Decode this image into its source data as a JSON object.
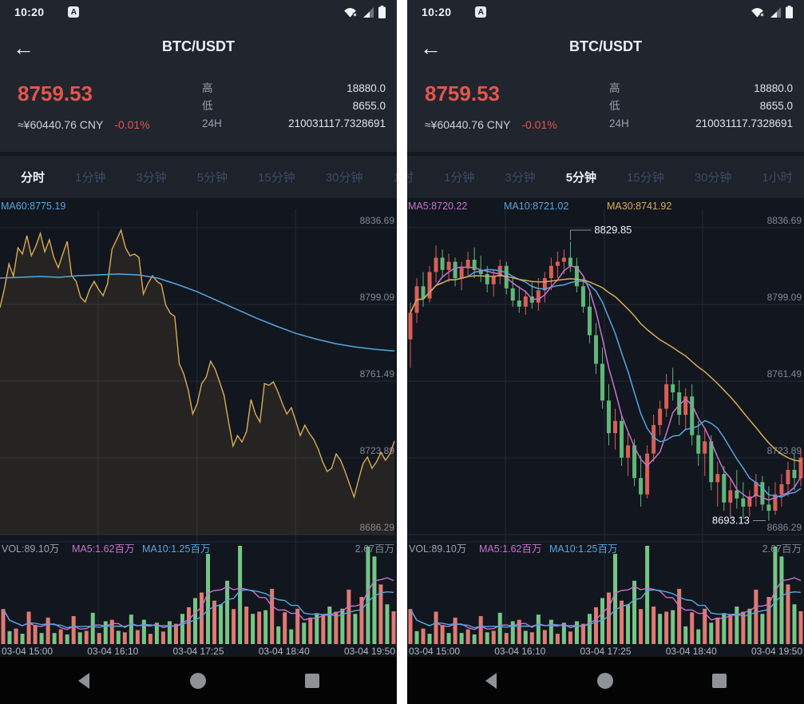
{
  "colors": {
    "up_red": "#d95f57",
    "down_green": "#5fb878",
    "vol_red": "#e07a72",
    "vol_green": "#74c685",
    "ma5_magenta": "#c873cf",
    "ma10_blue": "#55a7de",
    "ma30_yellow": "#d9ab55",
    "price_red": "#e4564c",
    "axis_label_gray": "#7f8795",
    "grid_line": "#242a35",
    "annotation_text": "#f2f4f7",
    "annotation_line": "#8a9097"
  },
  "status_bar": {
    "time": "10:20",
    "app_badge": "A"
  },
  "header": {
    "title": "BTC/USDT"
  },
  "ticker": {
    "price": "8759.53",
    "fiat": "≈¥60440.76 CNY",
    "change": "-0.01%",
    "rows": [
      {
        "label": "高",
        "value": "18880.0"
      },
      {
        "label": "低",
        "value": "8655.0"
      },
      {
        "label": "24H",
        "value": "210031117.7328691"
      }
    ]
  },
  "tabs": {
    "items": [
      "分时",
      "1分钟",
      "3分钟",
      "5分钟",
      "15分钟",
      "30分钟",
      "1小时"
    ],
    "names": [
      "tab-time-share",
      "tab-1min",
      "tab-3min",
      "tab-5min",
      "tab-15min",
      "tab-30min",
      "tab-1hour"
    ],
    "left_active": 0,
    "right_active": 3
  },
  "volume_pane": {
    "labels": [
      {
        "text": "VOL:89.10万",
        "color": "#9aa2ae"
      },
      {
        "text": "MA5:1.62百万",
        "color": "#c873cf"
      },
      {
        "text": "MA10:1.25百万",
        "color": "#55a7de"
      }
    ],
    "max_label": "2.67百万",
    "max_value": 267,
    "bars": [
      [
        95,
        "r"
      ],
      [
        35,
        "g"
      ],
      [
        42,
        "r"
      ],
      [
        28,
        "g"
      ],
      [
        88,
        "r"
      ],
      [
        52,
        "r"
      ],
      [
        30,
        "g"
      ],
      [
        72,
        "r"
      ],
      [
        30,
        "g"
      ],
      [
        40,
        "r"
      ],
      [
        26,
        "g"
      ],
      [
        76,
        "r"
      ],
      [
        32,
        "g"
      ],
      [
        36,
        "r"
      ],
      [
        85,
        "g"
      ],
      [
        30,
        "r"
      ],
      [
        62,
        "g"
      ],
      [
        66,
        "r"
      ],
      [
        36,
        "g"
      ],
      [
        32,
        "r"
      ],
      [
        80,
        "g"
      ],
      [
        38,
        "r"
      ],
      [
        66,
        "g"
      ],
      [
        28,
        "r"
      ],
      [
        58,
        "g"
      ],
      [
        34,
        "r"
      ],
      [
        62,
        "g"
      ],
      [
        55,
        "r"
      ],
      [
        82,
        "g"
      ],
      [
        100,
        "r"
      ],
      [
        125,
        "g"
      ],
      [
        140,
        "r"
      ],
      [
        245,
        "g"
      ],
      [
        118,
        "r"
      ],
      [
        108,
        "g"
      ],
      [
        172,
        "g"
      ],
      [
        95,
        "r"
      ],
      [
        267,
        "g"
      ],
      [
        102,
        "r"
      ],
      [
        82,
        "g"
      ],
      [
        88,
        "r"
      ],
      [
        92,
        "g"
      ],
      [
        150,
        "r"
      ],
      [
        48,
        "g"
      ],
      [
        86,
        "r"
      ],
      [
        40,
        "g"
      ],
      [
        96,
        "r"
      ],
      [
        58,
        "g"
      ],
      [
        72,
        "r"
      ],
      [
        84,
        "g"
      ],
      [
        80,
        "r"
      ],
      [
        102,
        "g"
      ],
      [
        88,
        "r"
      ],
      [
        96,
        "g"
      ],
      [
        148,
        "r"
      ],
      [
        82,
        "g"
      ],
      [
        128,
        "r"
      ],
      [
        265,
        "g"
      ],
      [
        238,
        "g"
      ],
      [
        162,
        "r"
      ],
      [
        108,
        "g"
      ],
      [
        89,
        "r"
      ]
    ]
  },
  "chart_data": [
    {
      "type": "line",
      "title": "分时 (time-share line chart)",
      "ma_labels": [
        {
          "text": "MA60:8775.19",
          "color": "#55a7de",
          "x": 1
        }
      ],
      "y_ticks": [
        "8836.69",
        "8799.09",
        "8761.49",
        "8723.89",
        "8686.29"
      ],
      "x_ticks": [
        "03-04 15:00",
        "03-04 16:10",
        "03-04 17:25",
        "03-04 18:40",
        "03-04 19:50"
      ],
      "ylim": [
        8686.29,
        8836.69
      ],
      "price": [
        8797.5,
        8807,
        8819,
        8813,
        8826.9,
        8823.8,
        8832.8,
        8823,
        8827.7,
        8833.9,
        8824.9,
        8830.8,
        8822.2,
        8817.1,
        8823.8,
        8830,
        8813.2,
        8810.4,
        8802.6,
        8800.3,
        8806.5,
        8810.4,
        8806.5,
        8803.4,
        8809.3,
        8826.1,
        8830.8,
        8835.5,
        8826.9,
        8823,
        8823.8,
        8822.2,
        8804.2,
        8809.3,
        8813.2,
        8810.4,
        8808.9,
        8798.7,
        8794.8,
        8793.2,
        8770.1,
        8765,
        8757.2,
        8745.4,
        8750.5,
        8760.3,
        8763.4,
        8771.3,
        8767.4,
        8761.1,
        8754.4,
        8741.5,
        8729.7,
        8734.8,
        8731.7,
        8736.8,
        8752.5,
        8745.4,
        8741.5,
        8760.3,
        8759.5,
        8761.1,
        8756.4,
        8750.5,
        8745.4,
        8748.5,
        8741.9,
        8734.8,
        8739.9,
        8736,
        8732.9,
        8728.2,
        8721.9,
        8717.2,
        8718.8,
        8725.8,
        8722.7,
        8717.2,
        8710.9,
        8704.7,
        8713.3,
        8721.1,
        8724.3,
        8718.8,
        8721.9,
        8726.6,
        8722.7,
        8725.8,
        8732.1
      ],
      "ma60": [
        8812.0,
        8812.4,
        8812.8,
        8812.4,
        8813.2,
        8813.6,
        8814.0,
        8813.6,
        8812.0,
        8808.9,
        8805.3,
        8801.0,
        8796.7,
        8792.4,
        8788.5,
        8784.9,
        8782.2,
        8779.9,
        8778.3,
        8777.1,
        8776.3
      ]
    },
    {
      "type": "candles",
      "title": "5分钟 K线 (5-min candlestick chart)",
      "ma_labels": [
        {
          "text": "MA5:8720.22",
          "color": "#c873cf",
          "x": 1
        },
        {
          "text": "MA10:8721.02",
          "color": "#55a7de",
          "x": 121
        },
        {
          "text": "MA30:8741.92",
          "color": "#d9ab55",
          "x": 250
        }
      ],
      "y_ticks": [
        "8836.69",
        "8799.09",
        "8761.49",
        "8723.89",
        "8686.29"
      ],
      "x_ticks": [
        "03-04 15:00",
        "03-04 16:10",
        "03-04 17:25",
        "03-04 18:40",
        "03-04 19:50"
      ],
      "ylim": [
        8686.29,
        8836.69
      ],
      "annotations": {
        "high": "8829.85",
        "low": "8693.13"
      },
      "candles": [
        [
          8782,
          8800,
          8768,
          8795
        ],
        [
          8795,
          8812,
          8790,
          8808
        ],
        [
          8808,
          8815,
          8798,
          8802
        ],
        [
          8802,
          8818,
          8800,
          8815
        ],
        [
          8815,
          8828,
          8810,
          8822
        ],
        [
          8822,
          8826,
          8812,
          8816
        ],
        [
          8816,
          8824,
          8810,
          8820
        ],
        [
          8820,
          8822,
          8808,
          8812
        ],
        [
          8812,
          8820,
          8806,
          8817
        ],
        [
          8817,
          8825,
          8813,
          8821
        ],
        [
          8821,
          8827,
          8812,
          8816
        ],
        [
          8816,
          8823,
          8810,
          8814
        ],
        [
          8814,
          8818,
          8805,
          8809
        ],
        [
          8809,
          8816,
          8803,
          8813
        ],
        [
          8813,
          8821,
          8809,
          8818
        ],
        [
          8818,
          8820,
          8804,
          8807
        ],
        [
          8807,
          8812,
          8798,
          8801
        ],
        [
          8801,
          8808,
          8795,
          8798
        ],
        [
          8798,
          8806,
          8794,
          8803
        ],
        [
          8803,
          8810,
          8797,
          8800
        ],
        [
          8800,
          8812,
          8796,
          8806
        ],
        [
          8806,
          8815,
          8800,
          8812
        ],
        [
          8812,
          8822,
          8806,
          8818
        ],
        [
          8818,
          8825,
          8812,
          8820
        ],
        [
          8820,
          8826,
          8814,
          8822
        ],
        [
          8822,
          8829.85,
          8815,
          8818
        ],
        [
          8818,
          8822,
          8805,
          8808
        ],
        [
          8808,
          8812,
          8795,
          8798
        ],
        [
          8798,
          8805,
          8780,
          8784
        ],
        [
          8784,
          8790,
          8765,
          8770
        ],
        [
          8770,
          8778,
          8748,
          8752
        ],
        [
          8752,
          8760,
          8730,
          8736
        ],
        [
          8736,
          8748,
          8728,
          8742
        ],
        [
          8742,
          8745,
          8720,
          8724
        ],
        [
          8724,
          8736,
          8715,
          8730
        ],
        [
          8730,
          8733,
          8710,
          8714
        ],
        [
          8714,
          8725,
          8700,
          8706
        ],
        [
          8706,
          8730,
          8704,
          8726
        ],
        [
          8726,
          8745,
          8722,
          8740
        ],
        [
          8740,
          8752,
          8735,
          8748
        ],
        [
          8748,
          8765,
          8744,
          8760
        ],
        [
          8760,
          8768,
          8752,
          8756
        ],
        [
          8756,
          8762,
          8740,
          8745
        ],
        [
          8745,
          8758,
          8738,
          8754
        ],
        [
          8754,
          8760,
          8730,
          8735
        ],
        [
          8735,
          8742,
          8720,
          8726
        ],
        [
          8726,
          8738,
          8715,
          8732
        ],
        [
          8732,
          8735,
          8708,
          8712
        ],
        [
          8712,
          8722,
          8700,
          8716
        ],
        [
          8716,
          8720,
          8698,
          8702
        ],
        [
          8702,
          8714,
          8695,
          8708
        ],
        [
          8708,
          8718,
          8699,
          8704
        ],
        [
          8704,
          8712,
          8694,
          8700
        ],
        [
          8700,
          8708,
          8695,
          8705
        ],
        [
          8705,
          8716,
          8700,
          8712
        ],
        [
          8712,
          8715,
          8698,
          8701
        ],
        [
          8701,
          8710,
          8693.13,
          8698
        ],
        [
          8698,
          8712,
          8696,
          8706
        ],
        [
          8706,
          8716,
          8700,
          8711
        ],
        [
          8711,
          8722,
          8705,
          8718
        ],
        [
          8718,
          8726,
          8708,
          8714
        ],
        [
          8714,
          8728,
          8710,
          8724
        ]
      ]
    }
  ]
}
